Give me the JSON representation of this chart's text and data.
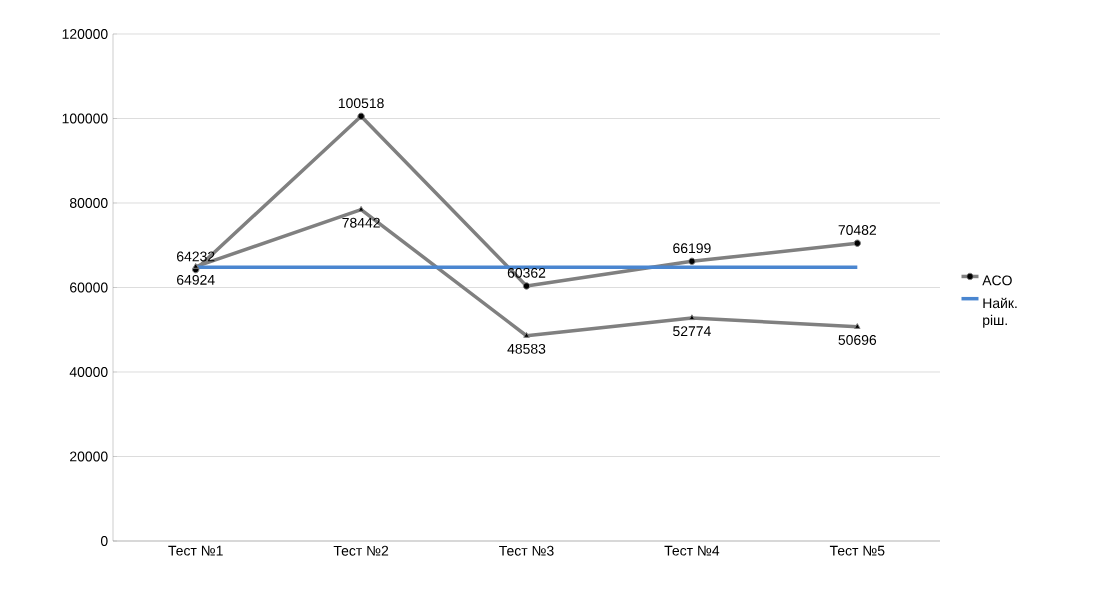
{
  "chart_data": {
    "type": "line",
    "categories": [
      "Тест №1",
      "Тест №2",
      "Тест №3",
      "Тест №4",
      "Тест №5"
    ],
    "series": [
      {
        "name": "ACO",
        "color": "#808080",
        "marker": "circle",
        "values": [
          64232,
          100518,
          60362,
          66199,
          70482
        ],
        "value_labels": [
          "64232",
          "100518",
          "60362",
          "66199",
          "70482"
        ]
      },
      {
        "color": "#808080",
        "marker": "triangle",
        "values": [
          64924,
          78442,
          48583,
          52774,
          50696
        ],
        "value_labels": [
          "64924",
          "78442",
          "48583",
          "52774",
          "50696"
        ]
      },
      {
        "name": "Найк. ріш.",
        "color": "#4a86d0",
        "marker": "none",
        "values": [
          64800,
          64800,
          64800,
          64800,
          64800
        ]
      }
    ],
    "ylim": [
      0,
      120000
    ],
    "yticks": [
      0,
      20000,
      40000,
      60000,
      80000,
      100000,
      120000
    ],
    "grid": "y",
    "legend": "right"
  }
}
